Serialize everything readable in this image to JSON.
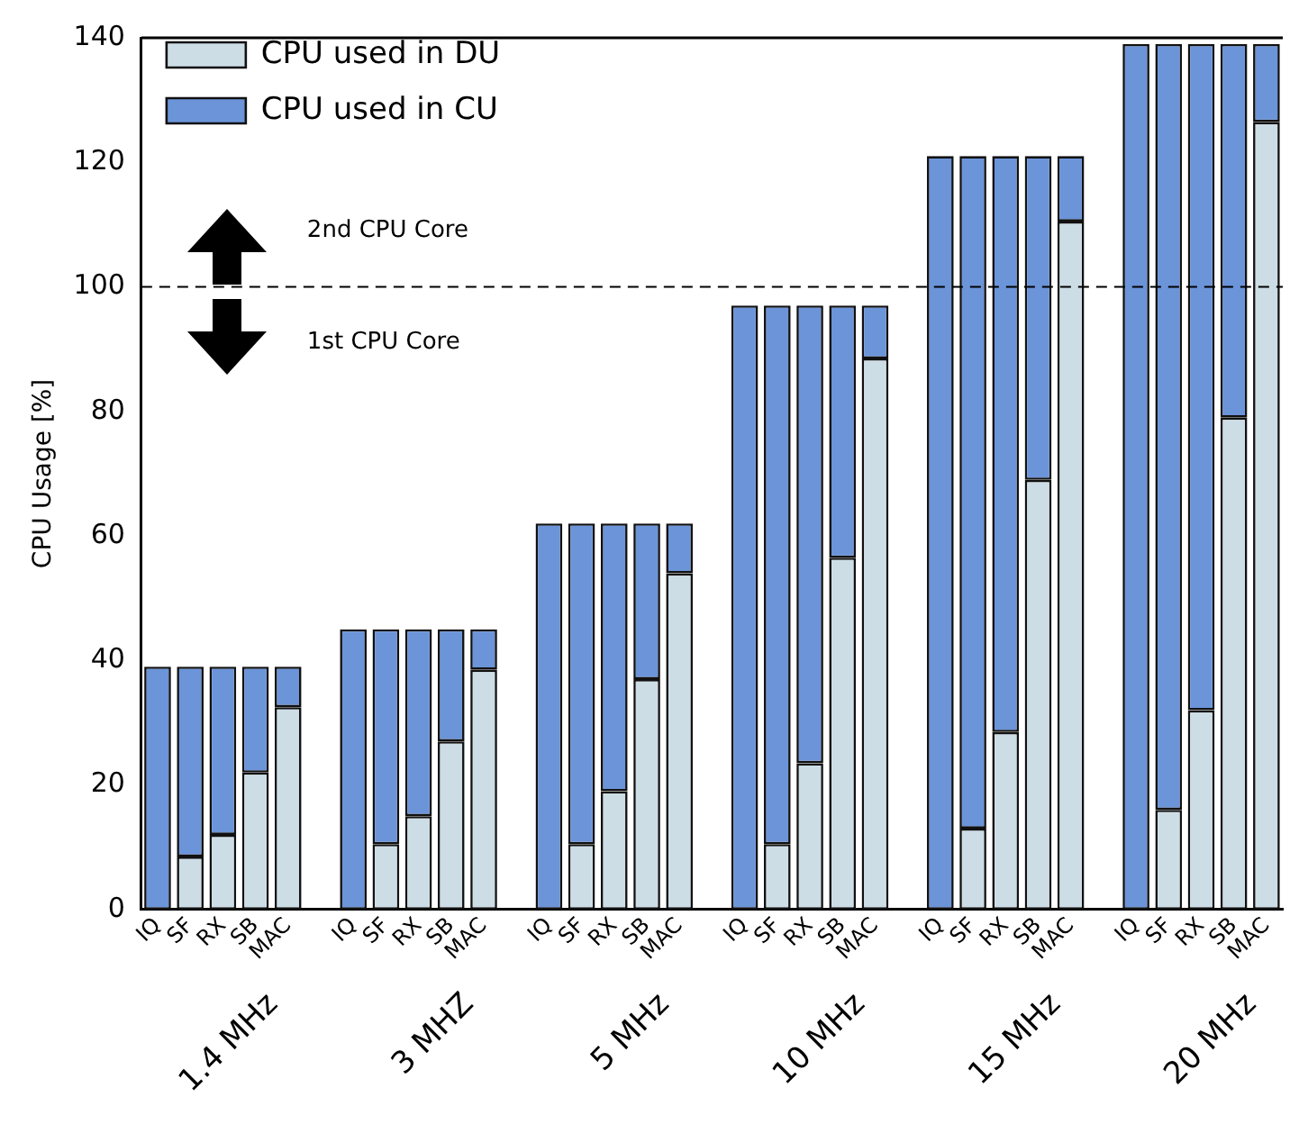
{
  "chart_data": {
    "type": "bar",
    "stacked": true,
    "ylabel": "CPU Usage [%]",
    "categories": [
      "IQ",
      "SF",
      "RX",
      "SB",
      "MAC",
      null,
      "IQ",
      "SF",
      "RX",
      "SB",
      "MAC",
      null,
      "IQ",
      "SF",
      "RX",
      "SB",
      "MAC",
      null,
      "IQ",
      "SF",
      "RX",
      "SB",
      "MAC",
      null,
      "IQ",
      "SF",
      "RX",
      "SB",
      "MAC",
      null,
      "IQ",
      "SF",
      "RX",
      "SB",
      "MAC"
    ],
    "series": [
      {
        "name": "CPU used in DU",
        "color": "#cddde6",
        "values": [
          0,
          8.5,
          12,
          22,
          32.5,
          null,
          0,
          10.5,
          15,
          27,
          38.5,
          null,
          0,
          10.5,
          19,
          37,
          54,
          null,
          0,
          10.5,
          23.5,
          56.5,
          88.5,
          null,
          0,
          13,
          28.5,
          69,
          110.5,
          null,
          0,
          16,
          32,
          79,
          126.5
        ]
      },
      {
        "name": "CPU used in CU",
        "color": "#6b94d9",
        "values": [
          39,
          30.5,
          27,
          17,
          6.5,
          null,
          45,
          34.5,
          30,
          18,
          6.5,
          null,
          62,
          51.5,
          43,
          25,
          8,
          null,
          97,
          86.5,
          73.5,
          40.5,
          8.5,
          null,
          121,
          108,
          92.5,
          52,
          10.5,
          null,
          139,
          123,
          107,
          60,
          12.5
        ]
      }
    ],
    "ylim": [
      0,
      140
    ],
    "yticks": [
      0,
      20,
      40,
      60,
      80,
      100,
      120,
      140
    ],
    "grid": false,
    "legend": "top left",
    "ref_lines": [
      {
        "axis": "y",
        "value": 100,
        "color": "#000000",
        "line_style": "dashed"
      }
    ],
    "annotations": [
      "1.4 MHz",
      "3 MHZ",
      "5 MHz",
      "10 MHz",
      "15 MHz",
      "20 MHz",
      "2nd CPU Core",
      "1st CPU Core"
    ]
  }
}
